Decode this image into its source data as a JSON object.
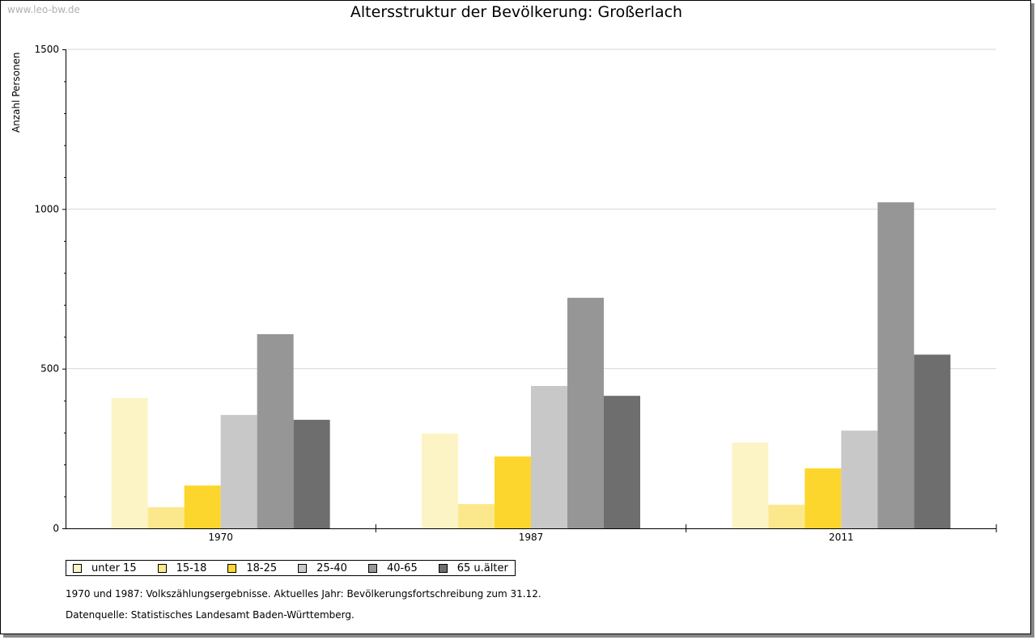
{
  "watermark": "www.leo-bw.de",
  "colors": {
    "unter_15": "#fcf4c4",
    "15_18": "#fce88c",
    "18_25": "#fcd62c",
    "25_40": "#c8c8c8",
    "40_65": "#969696",
    "65_plus": "#6e6e6e"
  },
  "notes": {
    "line1": "1970 und 1987: Volkszählungsergebnisse. Aktuelles Jahr: Bevölkerungsfortschreibung zum 31.12.",
    "line2": "Datenquelle: Statistisches Landesamt Baden-Württemberg."
  },
  "chart_data": {
    "type": "bar",
    "title": "Altersstruktur der Bevölkerung: Großerlach",
    "xlabel": "",
    "ylabel": "Anzahl Personen",
    "ylim": [
      0,
      1500
    ],
    "yticks": [
      0,
      500,
      1000,
      1500
    ],
    "grid": true,
    "legend_position": "bottom",
    "categories": [
      "1970",
      "1987",
      "2011"
    ],
    "series": [
      {
        "name": "unter 15",
        "color": "#fcf4c4",
        "values": [
          408,
          297,
          268
        ]
      },
      {
        "name": "15-18",
        "color": "#fce88c",
        "values": [
          66,
          76,
          74
        ]
      },
      {
        "name": "18-25",
        "color": "#fcd62c",
        "values": [
          134,
          225,
          188
        ]
      },
      {
        "name": "25-40",
        "color": "#c8c8c8",
        "values": [
          355,
          446,
          306
        ]
      },
      {
        "name": "40-65",
        "color": "#969696",
        "values": [
          608,
          722,
          1021
        ]
      },
      {
        "name": "65 u.älter",
        "color": "#6e6e6e",
        "values": [
          340,
          415,
          544
        ]
      }
    ]
  }
}
